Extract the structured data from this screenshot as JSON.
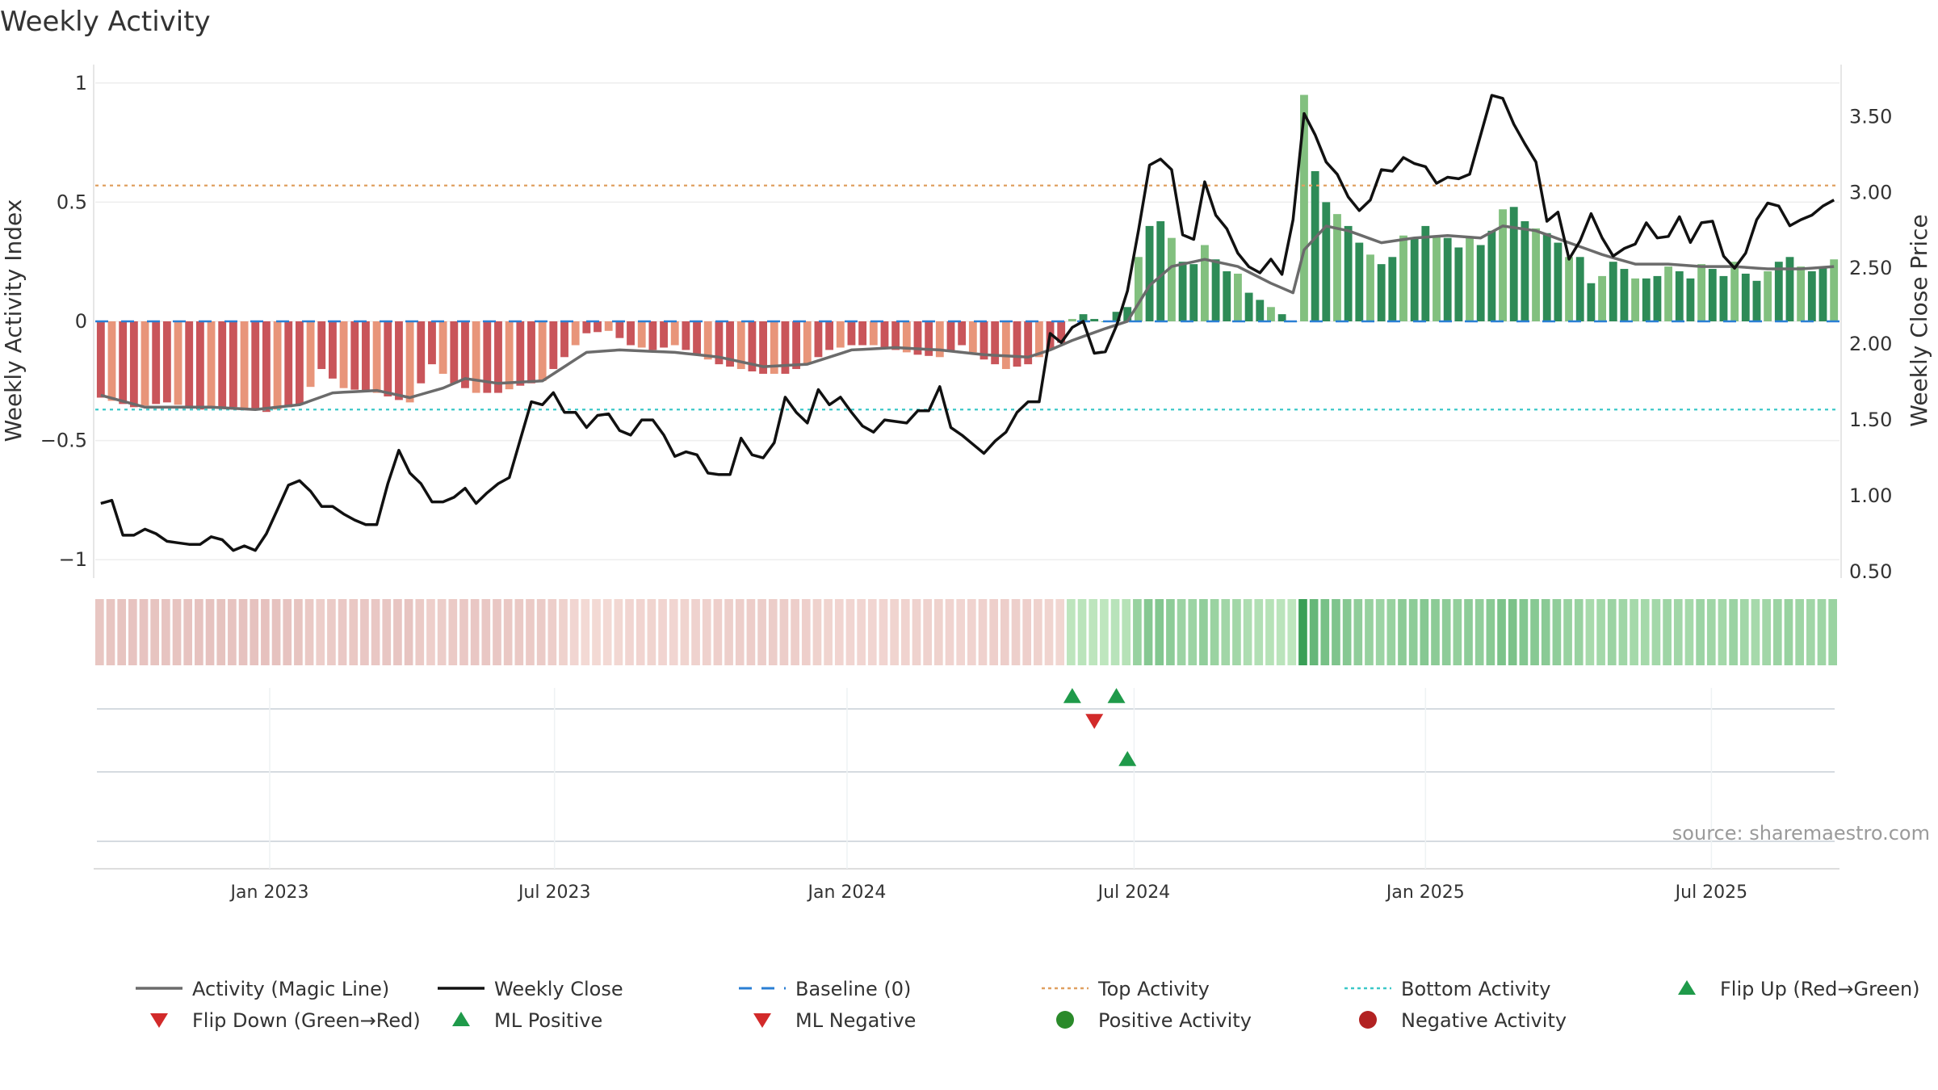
{
  "title": "Weekly Activity",
  "source": "source: sharemaestro.com",
  "chart_data": {
    "type": "bar+line",
    "start": "2022-09-12",
    "n_weeks": 158,
    "left_axis": {
      "label": "Weekly Activity Index",
      "ylim": [
        -1.05,
        1.05
      ],
      "ticks": [
        1,
        0.5,
        0,
        -0.5,
        -1
      ],
      "tick_labels": [
        "1",
        "0.5",
        "0",
        "−0.5",
        "−1"
      ]
    },
    "right_axis": {
      "label": "Weekly Close Price",
      "ylim": [
        0.5,
        3.8
      ],
      "ticks": [
        3.5,
        3.0,
        2.5,
        2.0,
        1.5,
        1.0,
        0.5
      ],
      "tick_labels": [
        "3.50",
        "3.00",
        "2.50",
        "2.00",
        "1.50",
        "1.00",
        "0.50"
      ]
    },
    "x_ticks": [
      {
        "label": "Jan 2023",
        "week": 15.3
      },
      {
        "label": "Jul 2023",
        "week": 41.1
      },
      {
        "label": "Jan 2024",
        "week": 67.6
      },
      {
        "label": "Jul 2024",
        "week": 93.6
      },
      {
        "label": "Jan 2025",
        "week": 120.0
      },
      {
        "label": "Jul 2025",
        "week": 145.9
      }
    ],
    "baseline": 0,
    "top_activity": 0.57,
    "bottom_activity": -0.37,
    "activity_keys": [
      [
        0,
        -0.32
      ],
      [
        3,
        -0.36
      ],
      [
        6,
        -0.34
      ],
      [
        9,
        -0.37
      ],
      [
        12,
        -0.36
      ],
      [
        15,
        -0.38
      ],
      [
        18,
        -0.35
      ],
      [
        20,
        -0.2
      ],
      [
        22,
        -0.28
      ],
      [
        25,
        -0.3
      ],
      [
        27,
        -0.33
      ],
      [
        28,
        -0.34
      ],
      [
        30,
        -0.18
      ],
      [
        32,
        -0.26
      ],
      [
        34,
        -0.3
      ],
      [
        36,
        -0.3
      ],
      [
        38,
        -0.27
      ],
      [
        40,
        -0.25
      ],
      [
        42,
        -0.15
      ],
      [
        44,
        -0.05
      ],
      [
        46,
        -0.04
      ],
      [
        48,
        -0.1
      ],
      [
        50,
        -0.12
      ],
      [
        52,
        -0.1
      ],
      [
        54,
        -0.14
      ],
      [
        56,
        -0.18
      ],
      [
        58,
        -0.2
      ],
      [
        60,
        -0.22
      ],
      [
        62,
        -0.22
      ],
      [
        64,
        -0.18
      ],
      [
        66,
        -0.12
      ],
      [
        68,
        -0.1
      ],
      [
        70,
        -0.1
      ],
      [
        72,
        -0.12
      ],
      [
        74,
        -0.14
      ],
      [
        76,
        -0.15
      ],
      [
        78,
        -0.1
      ],
      [
        80,
        -0.16
      ],
      [
        82,
        -0.2
      ],
      [
        84,
        -0.18
      ],
      [
        86,
        -0.12
      ],
      [
        87,
        -0.09
      ],
      [
        88,
        0.01
      ],
      [
        89,
        0.03
      ],
      [
        90,
        0.01
      ],
      [
        91,
        0.0
      ],
      [
        92,
        0.04
      ],
      [
        93,
        0.06
      ],
      [
        94,
        0.27
      ],
      [
        95,
        0.4
      ],
      [
        96,
        0.42
      ],
      [
        97,
        0.35
      ],
      [
        98,
        0.25
      ],
      [
        99,
        0.24
      ],
      [
        100,
        0.32
      ],
      [
        101,
        0.26
      ],
      [
        102,
        0.21
      ],
      [
        103,
        0.2
      ],
      [
        104,
        0.12
      ],
      [
        105,
        0.09
      ],
      [
        106,
        0.06
      ],
      [
        107,
        0.03
      ],
      [
        108,
        0.0
      ],
      [
        108.5,
        0.95
      ],
      [
        109,
        0.95
      ],
      [
        110,
        0.63
      ],
      [
        111,
        0.5
      ],
      [
        112,
        0.45
      ],
      [
        113,
        0.4
      ],
      [
        114,
        0.33
      ],
      [
        115,
        0.28
      ],
      [
        116,
        0.24
      ],
      [
        117,
        0.27
      ],
      [
        118,
        0.36
      ],
      [
        119,
        0.35
      ],
      [
        120,
        0.4
      ],
      [
        121,
        0.36
      ],
      [
        122,
        0.35
      ],
      [
        123,
        0.31
      ],
      [
        124,
        0.35
      ],
      [
        125,
        0.32
      ],
      [
        126,
        0.38
      ],
      [
        127,
        0.47
      ],
      [
        128,
        0.48
      ],
      [
        129,
        0.42
      ],
      [
        130,
        0.39
      ],
      [
        131,
        0.37
      ],
      [
        132,
        0.33
      ],
      [
        133,
        0.27
      ],
      [
        134,
        0.27
      ],
      [
        135,
        0.16
      ],
      [
        136,
        0.19
      ],
      [
        137,
        0.25
      ],
      [
        138,
        0.22
      ],
      [
        139,
        0.18
      ],
      [
        140,
        0.18
      ],
      [
        141,
        0.19
      ],
      [
        142,
        0.23
      ],
      [
        143,
        0.21
      ],
      [
        144,
        0.18
      ],
      [
        145,
        0.24
      ],
      [
        146,
        0.22
      ],
      [
        147,
        0.19
      ],
      [
        148,
        0.25
      ],
      [
        149,
        0.2
      ],
      [
        150,
        0.17
      ],
      [
        151,
        0.21
      ],
      [
        152,
        0.25
      ],
      [
        153,
        0.27
      ],
      [
        154,
        0.23
      ],
      [
        155,
        0.21
      ],
      [
        156,
        0.23
      ],
      [
        157,
        0.26
      ]
    ],
    "magic_line_keys": [
      [
        0,
        -0.31
      ],
      [
        4,
        -0.36
      ],
      [
        10,
        -0.36
      ],
      [
        14,
        -0.37
      ],
      [
        18,
        -0.35
      ],
      [
        21,
        -0.3
      ],
      [
        25,
        -0.29
      ],
      [
        28,
        -0.32
      ],
      [
        31,
        -0.28
      ],
      [
        33,
        -0.24
      ],
      [
        36,
        -0.26
      ],
      [
        40,
        -0.25
      ],
      [
        44,
        -0.13
      ],
      [
        47,
        -0.12
      ],
      [
        52,
        -0.13
      ],
      [
        56,
        -0.15
      ],
      [
        60,
        -0.19
      ],
      [
        64,
        -0.18
      ],
      [
        68,
        -0.12
      ],
      [
        72,
        -0.11
      ],
      [
        76,
        -0.12
      ],
      [
        80,
        -0.14
      ],
      [
        84,
        -0.15
      ],
      [
        86,
        -0.12
      ],
      [
        88,
        -0.08
      ],
      [
        91,
        -0.03
      ],
      [
        93,
        0.0
      ],
      [
        95,
        0.15
      ],
      [
        97,
        0.23
      ],
      [
        100,
        0.26
      ],
      [
        103,
        0.23
      ],
      [
        106,
        0.16
      ],
      [
        108,
        0.12
      ],
      [
        109,
        0.3
      ],
      [
        111,
        0.4
      ],
      [
        113,
        0.38
      ],
      [
        116,
        0.33
      ],
      [
        119,
        0.35
      ],
      [
        122,
        0.36
      ],
      [
        125,
        0.35
      ],
      [
        127,
        0.4
      ],
      [
        130,
        0.38
      ],
      [
        133,
        0.33
      ],
      [
        136,
        0.28
      ],
      [
        139,
        0.24
      ],
      [
        142,
        0.24
      ],
      [
        145,
        0.23
      ],
      [
        148,
        0.23
      ],
      [
        151,
        0.22
      ],
      [
        154,
        0.22
      ],
      [
        157,
        0.23
      ]
    ],
    "close_keys": [
      [
        0,
        0.95
      ],
      [
        1,
        0.97
      ],
      [
        2,
        0.74
      ],
      [
        3,
        0.74
      ],
      [
        4,
        0.78
      ],
      [
        5,
        0.75
      ],
      [
        6,
        0.7
      ],
      [
        8,
        0.68
      ],
      [
        9,
        0.68
      ],
      [
        10,
        0.73
      ],
      [
        11,
        0.71
      ],
      [
        12,
        0.64
      ],
      [
        13,
        0.67
      ],
      [
        14,
        0.64
      ],
      [
        15,
        0.75
      ],
      [
        17,
        1.07
      ],
      [
        18,
        1.1
      ],
      [
        19,
        1.03
      ],
      [
        20,
        0.93
      ],
      [
        21,
        0.93
      ],
      [
        22,
        0.88
      ],
      [
        23,
        0.84
      ],
      [
        24,
        0.81
      ],
      [
        25,
        0.81
      ],
      [
        26,
        1.08
      ],
      [
        27,
        1.3
      ],
      [
        28,
        1.15
      ],
      [
        29,
        1.08
      ],
      [
        30,
        0.96
      ],
      [
        31,
        0.96
      ],
      [
        32,
        0.99
      ],
      [
        33,
        1.05
      ],
      [
        34,
        0.95
      ],
      [
        35,
        1.02
      ],
      [
        36,
        1.08
      ],
      [
        37,
        1.12
      ],
      [
        39,
        1.62
      ],
      [
        40,
        1.6
      ],
      [
        41,
        1.68
      ],
      [
        42,
        1.55
      ],
      [
        43,
        1.55
      ],
      [
        44,
        1.45
      ],
      [
        45,
        1.53
      ],
      [
        46,
        1.54
      ],
      [
        47,
        1.43
      ],
      [
        48,
        1.4
      ],
      [
        49,
        1.5
      ],
      [
        50,
        1.5
      ],
      [
        51,
        1.4
      ],
      [
        52,
        1.26
      ],
      [
        53,
        1.29
      ],
      [
        54,
        1.27
      ],
      [
        55,
        1.15
      ],
      [
        56,
        1.14
      ],
      [
        57,
        1.14
      ],
      [
        58,
        1.38
      ],
      [
        59,
        1.27
      ],
      [
        60,
        1.25
      ],
      [
        61,
        1.35
      ],
      [
        62,
        1.65
      ],
      [
        63,
        1.55
      ],
      [
        64,
        1.48
      ],
      [
        65,
        1.7
      ],
      [
        66,
        1.6
      ],
      [
        67,
        1.65
      ],
      [
        68,
        1.55
      ],
      [
        69,
        1.46
      ],
      [
        70,
        1.42
      ],
      [
        71,
        1.5
      ],
      [
        72,
        1.49
      ],
      [
        73,
        1.48
      ],
      [
        74,
        1.56
      ],
      [
        75,
        1.56
      ],
      [
        76,
        1.72
      ],
      [
        77,
        1.45
      ],
      [
        78,
        1.4
      ],
      [
        79,
        1.34
      ],
      [
        80,
        1.28
      ],
      [
        81,
        1.36
      ],
      [
        82,
        1.42
      ],
      [
        83,
        1.55
      ],
      [
        84,
        1.62
      ],
      [
        85,
        1.62
      ],
      [
        86,
        2.07
      ],
      [
        87,
        2.01
      ],
      [
        88,
        2.11
      ],
      [
        89,
        2.15
      ],
      [
        90,
        1.94
      ],
      [
        91,
        1.95
      ],
      [
        92,
        2.12
      ],
      [
        93,
        2.35
      ],
      [
        94,
        2.75
      ],
      [
        95,
        3.18
      ],
      [
        96,
        3.22
      ],
      [
        97,
        3.15
      ],
      [
        98,
        2.72
      ],
      [
        99,
        2.69
      ],
      [
        100,
        3.07
      ],
      [
        101,
        2.85
      ],
      [
        102,
        2.76
      ],
      [
        103,
        2.6
      ],
      [
        104,
        2.51
      ],
      [
        105,
        2.47
      ],
      [
        106,
        2.56
      ],
      [
        107,
        2.46
      ],
      [
        108,
        2.82
      ],
      [
        109,
        3.52
      ],
      [
        110,
        3.38
      ],
      [
        111,
        3.2
      ],
      [
        112,
        3.12
      ],
      [
        113,
        2.97
      ],
      [
        114,
        2.88
      ],
      [
        115,
        2.95
      ],
      [
        116,
        3.15
      ],
      [
        117,
        3.14
      ],
      [
        118,
        3.23
      ],
      [
        119,
        3.19
      ],
      [
        120,
        3.17
      ],
      [
        121,
        3.06
      ],
      [
        122,
        3.1
      ],
      [
        123,
        3.09
      ],
      [
        124,
        3.12
      ],
      [
        125,
        3.38
      ],
      [
        126,
        3.64
      ],
      [
        127,
        3.62
      ],
      [
        128,
        3.45
      ],
      [
        129,
        3.32
      ],
      [
        130,
        3.2
      ],
      [
        131,
        2.81
      ],
      [
        132,
        2.87
      ],
      [
        133,
        2.56
      ],
      [
        134,
        2.68
      ],
      [
        135,
        2.86
      ],
      [
        136,
        2.7
      ],
      [
        137,
        2.58
      ],
      [
        138,
        2.63
      ],
      [
        139,
        2.66
      ],
      [
        140,
        2.8
      ],
      [
        141,
        2.7
      ],
      [
        142,
        2.71
      ],
      [
        143,
        2.84
      ],
      [
        144,
        2.67
      ],
      [
        145,
        2.8
      ],
      [
        146,
        2.81
      ],
      [
        147,
        2.58
      ],
      [
        148,
        2.5
      ],
      [
        149,
        2.6
      ],
      [
        150,
        2.82
      ],
      [
        151,
        2.93
      ],
      [
        152,
        2.91
      ],
      [
        153,
        2.78
      ],
      [
        154,
        2.82
      ],
      [
        155,
        2.85
      ],
      [
        156,
        2.91
      ],
      [
        157,
        2.95
      ]
    ],
    "signals": {
      "flip_up": [
        88,
        92
      ],
      "flip_down": [
        90
      ],
      "ml_positive": [
        93
      ],
      "ml_negative": []
    },
    "legend": [
      {
        "label": "Activity (Magic Line)",
        "symbol": "line",
        "color": "#6b6b6b"
      },
      {
        "label": "Weekly Close",
        "symbol": "line",
        "color": "#111111"
      },
      {
        "label": "Baseline (0)",
        "symbol": "dash",
        "color": "#2a7fd4"
      },
      {
        "label": "Top Activity",
        "symbol": "dot-line",
        "color": "#e0a060"
      },
      {
        "label": "Bottom Activity",
        "symbol": "dot-line",
        "color": "#3cc8c8"
      },
      {
        "label": "Flip Up (Red→Green)",
        "symbol": "tri-up",
        "color": "#1f9a4a"
      },
      {
        "label": "Flip Down (Green→Red)",
        "symbol": "tri-down",
        "color": "#d22a2a"
      },
      {
        "label": "ML Positive",
        "symbol": "tri-up",
        "color": "#1f9a4a"
      },
      {
        "label": "ML Negative",
        "symbol": "tri-down",
        "color": "#d22a2a"
      },
      {
        "label": "Positive Activity",
        "symbol": "circle",
        "color": "#2a8a2a"
      },
      {
        "label": "Negative Activity",
        "symbol": "circle",
        "color": "#b22222"
      }
    ],
    "colors": {
      "neg_strong": "#c9555a",
      "neg_light": "#e8957a",
      "pos_strong": "#2e8b57",
      "pos_light": "#82c07f",
      "magic_line": "#6b6b6b",
      "close": "#111111",
      "baseline": "#2a7fd4",
      "top": "#e0a060",
      "bottom": "#3cc8c8"
    }
  }
}
